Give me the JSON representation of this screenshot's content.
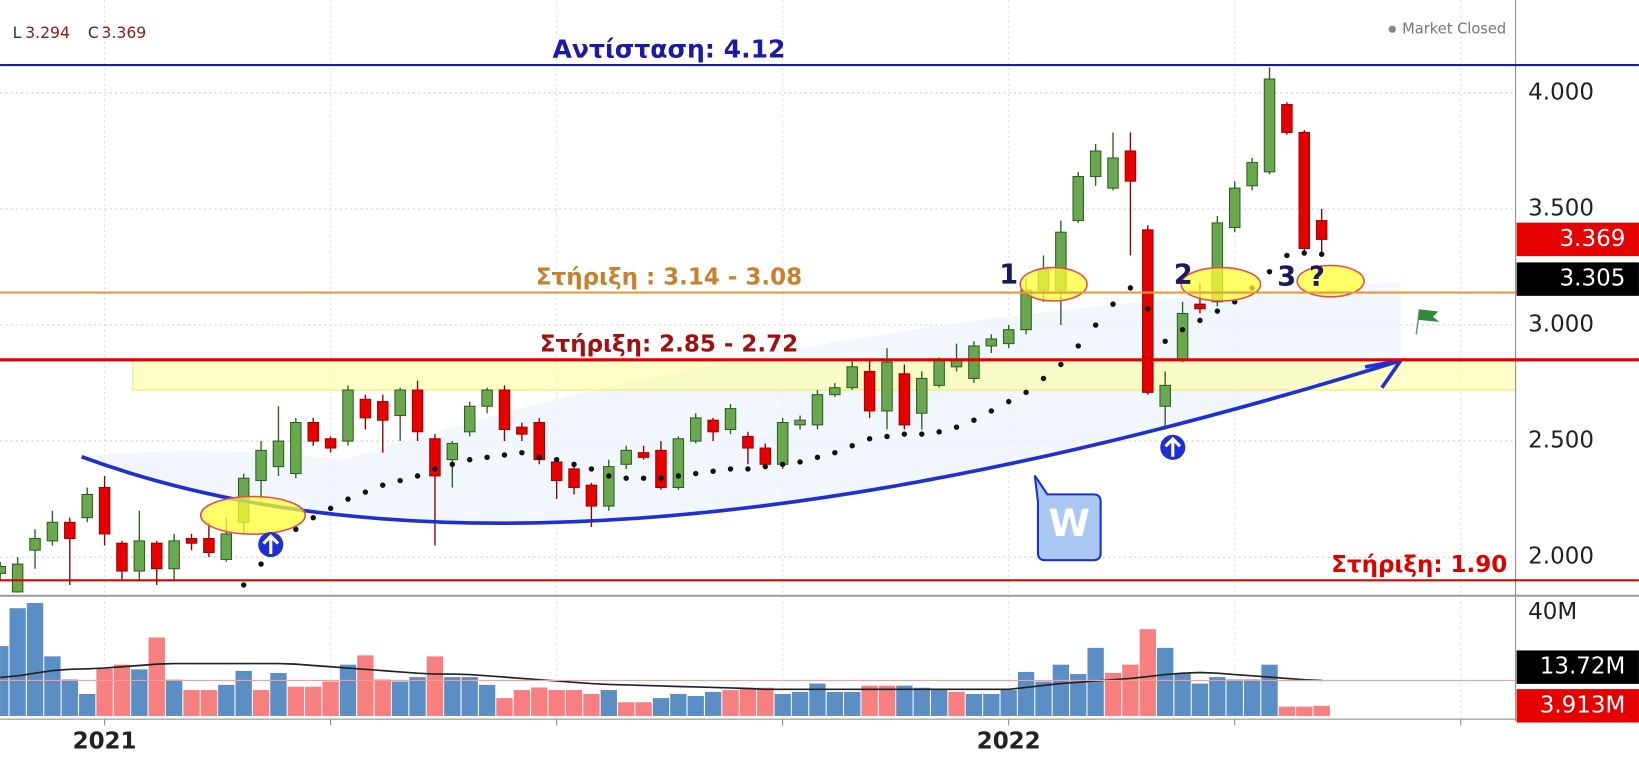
{
  "chart_data": {
    "type": "candlestick",
    "header": {
      "low_label": "L",
      "close_label": "C"
    },
    "status": "Market Closed",
    "categories": [
      null,
      null,
      null,
      null,
      null,
      null,
      "2021",
      null,
      null,
      null,
      null,
      null,
      null,
      null,
      null,
      null,
      null,
      null,
      null,
      null,
      null,
      null,
      null,
      null,
      null,
      null,
      null,
      null,
      null,
      null,
      null,
      null,
      null,
      null,
      null,
      null,
      null,
      null,
      null,
      null,
      null,
      null,
      null,
      null,
      null,
      null,
      null,
      null,
      null,
      null,
      null,
      null,
      null,
      null,
      null,
      null,
      null,
      null,
      "2022",
      null,
      null,
      null,
      null,
      null,
      null,
      null,
      null,
      null,
      null,
      null,
      null,
      null,
      null,
      null,
      null,
      null,
      null
    ],
    "open": [
      1.93,
      1.85,
      2.03,
      2.07,
      2.15,
      2.17,
      2.3,
      2.06,
      1.94,
      2.06,
      1.95,
      2.08,
      2.08,
      1.99,
      2.15,
      2.33,
      2.39,
      2.36,
      2.58,
      2.51,
      2.5,
      2.68,
      2.67,
      2.61,
      2.72,
      2.51,
      2.42,
      2.54,
      2.65,
      2.72,
      2.56,
      2.58,
      2.41,
      2.38,
      2.31,
      2.22,
      2.4,
      2.45,
      2.46,
      2.3,
      2.5,
      2.59,
      2.55,
      2.52,
      2.47,
      2.4,
      2.57,
      2.57,
      2.7,
      2.73,
      2.8,
      2.63,
      2.79,
      2.62,
      2.74,
      2.82,
      2.77,
      2.91,
      2.92,
      2.98,
      3.15,
      3.15,
      3.45,
      3.64,
      3.59,
      3.75,
      3.41,
      2.65,
      2.85,
      3.09,
      3.1,
      3.42,
      3.6,
      3.66,
      3.95,
      3.83,
      3.45
    ],
    "high": [
      1.98,
      2.0,
      2.12,
      2.2,
      2.17,
      2.3,
      2.35,
      2.07,
      2.2,
      2.07,
      2.1,
      2.1,
      2.15,
      2.17,
      2.36,
      2.5,
      2.65,
      2.6,
      2.6,
      2.52,
      2.74,
      2.7,
      2.7,
      2.73,
      2.76,
      2.53,
      2.5,
      2.67,
      2.73,
      2.74,
      2.58,
      2.6,
      2.43,
      2.4,
      2.32,
      2.42,
      2.48,
      2.48,
      2.5,
      2.52,
      2.62,
      2.6,
      2.66,
      2.54,
      2.49,
      2.6,
      2.61,
      2.72,
      2.75,
      2.85,
      2.85,
      2.9,
      2.83,
      2.8,
      2.86,
      2.92,
      2.93,
      2.96,
      3.0,
      3.2,
      3.3,
      3.45,
      3.66,
      3.78,
      3.83,
      3.83,
      3.43,
      2.8,
      3.1,
      3.18,
      3.47,
      3.62,
      3.72,
      4.11,
      3.96,
      3.84,
      3.5
    ],
    "low": [
      1.9,
      1.84,
      1.95,
      2.05,
      1.88,
      2.15,
      2.05,
      1.9,
      1.9,
      1.88,
      1.9,
      2.03,
      2.0,
      1.98,
      2.1,
      2.25,
      2.35,
      2.34,
      2.48,
      2.45,
      2.48,
      2.55,
      2.45,
      2.5,
      2.5,
      2.05,
      2.3,
      2.52,
      2.62,
      2.5,
      2.5,
      2.4,
      2.25,
      2.27,
      2.13,
      2.2,
      2.38,
      2.42,
      2.29,
      2.29,
      2.49,
      2.5,
      2.53,
      2.4,
      2.38,
      2.38,
      2.55,
      2.55,
      2.69,
      2.72,
      2.6,
      2.55,
      2.55,
      2.55,
      2.73,
      2.8,
      2.75,
      2.88,
      2.9,
      2.96,
      3.1,
      3.0,
      3.44,
      3.6,
      3.58,
      3.3,
      2.7,
      2.55,
      2.84,
      3.05,
      3.08,
      3.4,
      3.58,
      3.65,
      3.82,
      3.32,
      3.294
    ],
    "close": [
      1.96,
      1.97,
      2.08,
      2.15,
      2.08,
      2.27,
      2.1,
      1.94,
      2.07,
      1.95,
      2.07,
      2.06,
      2.02,
      2.1,
      2.34,
      2.46,
      2.5,
      2.58,
      2.5,
      2.47,
      2.72,
      2.6,
      2.59,
      2.72,
      2.54,
      2.35,
      2.49,
      2.65,
      2.72,
      2.55,
      2.53,
      2.42,
      2.33,
      2.3,
      2.22,
      2.39,
      2.46,
      2.43,
      2.3,
      2.51,
      2.6,
      2.54,
      2.64,
      2.47,
      2.4,
      2.58,
      2.59,
      2.7,
      2.73,
      2.82,
      2.63,
      2.84,
      2.57,
      2.77,
      2.85,
      2.85,
      2.91,
      2.94,
      2.98,
      3.15,
      3.24,
      3.4,
      3.64,
      3.75,
      3.72,
      3.62,
      2.71,
      2.74,
      3.05,
      3.07,
      3.44,
      3.59,
      3.7,
      4.06,
      3.83,
      3.33,
      3.369
    ],
    "up_color": "#6aa84f",
    "down_color": "#e60000",
    "sar": [
      null,
      null,
      null,
      null,
      null,
      null,
      null,
      null,
      null,
      null,
      null,
      null,
      null,
      null,
      1.88,
      1.97,
      2.05,
      2.12,
      2.17,
      2.21,
      2.25,
      2.28,
      2.31,
      2.33,
      2.35,
      2.38,
      2.4,
      2.42,
      2.43,
      2.44,
      2.45,
      2.43,
      2.42,
      2.4,
      2.38,
      2.35,
      2.34,
      2.34,
      2.34,
      2.35,
      2.36,
      2.37,
      2.38,
      2.38,
      2.39,
      2.4,
      2.41,
      2.43,
      2.45,
      2.48,
      2.51,
      2.52,
      2.53,
      2.53,
      2.54,
      2.56,
      2.59,
      2.63,
      2.67,
      2.71,
      2.77,
      2.83,
      2.91,
      3.0,
      3.09,
      3.16,
      3.07,
      2.93,
      2.98,
      3.02,
      3.06,
      3.1,
      3.16,
      3.23,
      3.3,
      3.31,
      3.305
    ],
    "ylim": [
      1.847,
      4.378
    ],
    "yticks": [
      {
        "value": 2,
        "label": "2.000"
      },
      {
        "value": 2.5,
        "label": "2.500"
      },
      {
        "value": 3,
        "label": "3.000"
      },
      {
        "value": 3.5,
        "label": "3.500"
      },
      {
        "value": 4,
        "label": "4.000"
      }
    ],
    "grid": true,
    "levels": [
      {
        "label": "Αντίσταση:  4.12",
        "value": 4.12,
        "color": "#1a1aa6"
      },
      {
        "label": "Στήριξη : 3.14 - 3.08",
        "value": 3.14,
        "color": "#e69a3c"
      },
      {
        "label": "Στήριξη: 2.85 - 2.72",
        "value": 2.85,
        "color": "#e00000"
      },
      {
        "label": "Στήριξη: 1.90",
        "value": 1.9,
        "color": "#e00000"
      }
    ],
    "band": {
      "range": [
        2.85,
        2.72
      ],
      "color": "#ffff99"
    },
    "pattern_labels": [
      "1",
      "2",
      "3",
      "?"
    ],
    "pattern_name": "W",
    "volume": {
      "values": [
        27,
        41.6,
        43.6,
        23,
        14.1,
        8.5,
        18.2,
        19.8,
        18,
        30.3,
        14,
        10,
        10,
        12,
        17.4,
        10,
        16.6,
        11.3,
        11.3,
        13.3,
        19.8,
        23.4,
        14.1,
        13.3,
        15,
        23,
        15,
        15,
        12,
        6.9,
        10,
        11,
        10,
        10,
        8.5,
        10,
        5.3,
        5.3,
        6.9,
        8.5,
        7.7,
        9.3,
        10,
        10.9,
        10.9,
        8.5,
        9.3,
        12.5,
        9.3,
        9.3,
        11.7,
        11.7,
        11.7,
        10.9,
        10,
        9.3,
        8.5,
        8.5,
        10,
        17,
        13.3,
        19.8,
        16.2,
        26.3,
        16.6,
        19.8,
        33.5,
        26.3,
        16.6,
        12.5,
        15,
        14.1,
        14.1,
        19.8,
        3.6,
        3.6,
        3.913
      ],
      "down": [
        false,
        false,
        false,
        false,
        false,
        false,
        true,
        true,
        false,
        true,
        false,
        true,
        true,
        false,
        false,
        true,
        false,
        true,
        true,
        true,
        false,
        true,
        true,
        false,
        false,
        true,
        false,
        false,
        false,
        true,
        true,
        true,
        true,
        true,
        true,
        false,
        true,
        true,
        false,
        false,
        false,
        false,
        true,
        true,
        true,
        false,
        false,
        false,
        false,
        false,
        true,
        true,
        false,
        false,
        false,
        true,
        false,
        false,
        false,
        false,
        false,
        false,
        false,
        false,
        true,
        true,
        true,
        false,
        false,
        false,
        false,
        false,
        false,
        false,
        true,
        true,
        true
      ],
      "ma": [
        14.9,
        15.5,
        16.5,
        17.5,
        18,
        18.2,
        18.5,
        19,
        19.5,
        20,
        20.2,
        20.2,
        20.2,
        20.2,
        20.2,
        20.2,
        20.2,
        20,
        19.5,
        19,
        18.5,
        18,
        17.5,
        17,
        16.5,
        16.2,
        16.2,
        16,
        15.5,
        15,
        14.5,
        14,
        13.5,
        13,
        12.5,
        12.2,
        12,
        11.8,
        11.6,
        11.4,
        11.2,
        11,
        10.8,
        10.6,
        10.3,
        10.3,
        10.3,
        10.3,
        10.3,
        10.3,
        10.3,
        10.3,
        10.3,
        10.3,
        10.3,
        10.3,
        10.3,
        10.3,
        10.3,
        11,
        11.8,
        12.5,
        13,
        13.5,
        14,
        14.5,
        15.2,
        16,
        16.5,
        16.8,
        16.5,
        16,
        15.5,
        15,
        14.5,
        14,
        13.72
      ],
      "ma_last_label": "13.72M",
      "last_label": "3.913M",
      "up_color": "#5b8ec4",
      "down_color": "#f77f7f",
      "ma_color": "#222222",
      "ylim": [
        0,
        45.6
      ],
      "yticks": [
        {
          "value": 40,
          "label": "40M"
        }
      ]
    }
  }
}
